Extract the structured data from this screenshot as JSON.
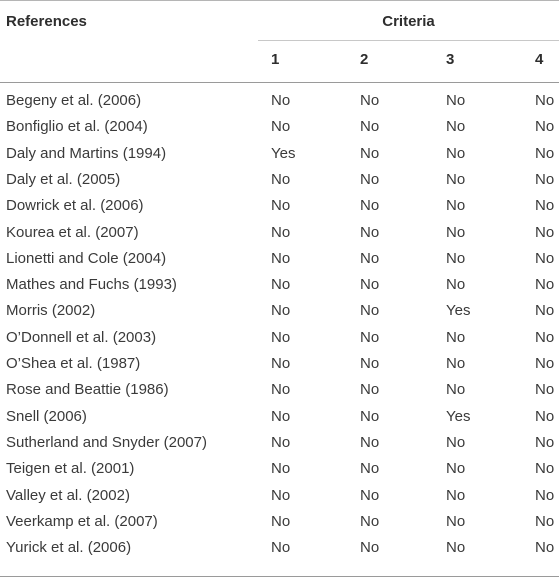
{
  "header": {
    "references": "References",
    "criteria": "Criteria",
    "criteria_numbers": [
      "1",
      "2",
      "3",
      "4"
    ]
  },
  "rows": [
    {
      "reference": "Begeny et al. (2006)",
      "values": [
        "No",
        "No",
        "No",
        "No"
      ]
    },
    {
      "reference": "Bonfiglio et al. (2004)",
      "values": [
        "No",
        "No",
        "No",
        "No"
      ]
    },
    {
      "reference": "Daly and Martins (1994)",
      "values": [
        "Yes",
        "No",
        "No",
        "No"
      ]
    },
    {
      "reference": "Daly et al. (2005)",
      "values": [
        "No",
        "No",
        "No",
        "No"
      ]
    },
    {
      "reference": "Dowrick et al. (2006)",
      "values": [
        "No",
        "No",
        "No",
        "No"
      ]
    },
    {
      "reference": "Kourea et al. (2007)",
      "values": [
        "No",
        "No",
        "No",
        "No"
      ]
    },
    {
      "reference": "Lionetti and Cole (2004)",
      "values": [
        "No",
        "No",
        "No",
        "No"
      ]
    },
    {
      "reference": "Mathes and Fuchs (1993)",
      "values": [
        "No",
        "No",
        "No",
        "No"
      ]
    },
    {
      "reference": "Morris (2002)",
      "values": [
        "No",
        "No",
        "Yes",
        "No"
      ]
    },
    {
      "reference": "O’Donnell et al. (2003)",
      "values": [
        "No",
        "No",
        "No",
        "No"
      ]
    },
    {
      "reference": "O’Shea et al. (1987)",
      "values": [
        "No",
        "No",
        "No",
        "No"
      ]
    },
    {
      "reference": "Rose and Beattie (1986)",
      "values": [
        "No",
        "No",
        "No",
        "No"
      ]
    },
    {
      "reference": "Snell (2006)",
      "values": [
        "No",
        "No",
        "Yes",
        "No"
      ]
    },
    {
      "reference": "Sutherland and Snyder (2007)",
      "values": [
        "No",
        "No",
        "No",
        "No"
      ]
    },
    {
      "reference": "Teigen et al. (2001)",
      "values": [
        "No",
        "No",
        "No",
        "No"
      ]
    },
    {
      "reference": "Valley et al. (2002)",
      "values": [
        "No",
        "No",
        "No",
        "No"
      ]
    },
    {
      "reference": "Veerkamp et al. (2007)",
      "values": [
        "No",
        "No",
        "No",
        "No"
      ]
    },
    {
      "reference": "Yurick et al. (2006)",
      "values": [
        "No",
        "No",
        "No",
        "No"
      ]
    }
  ]
}
